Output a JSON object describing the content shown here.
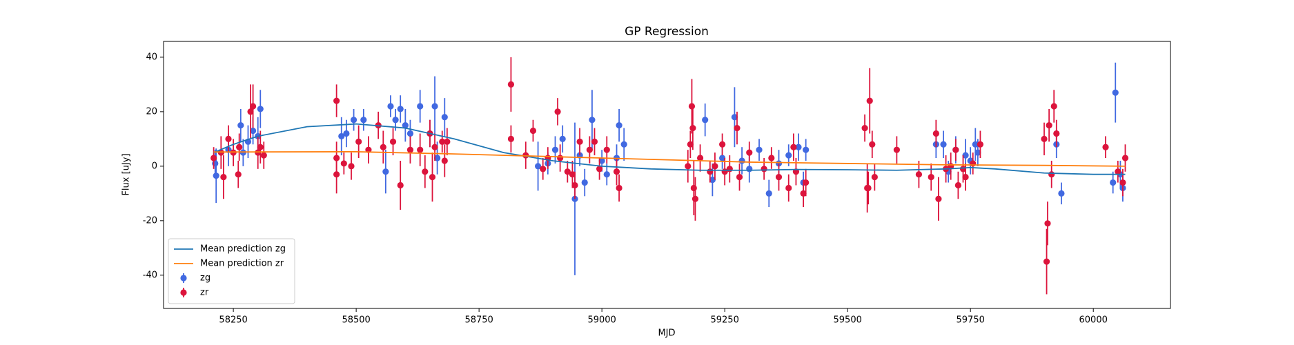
{
  "chart_data": {
    "type": "errorbar",
    "title": "GP Regression",
    "x_label": "MJD",
    "y_label": "Flux [uJy]",
    "xlim": [
      58108,
      60157
    ],
    "xticks": [
      58250,
      58500,
      58750,
      59000,
      59250,
      59500,
      59750,
      60000
    ],
    "ylim": [
      -52.2,
      45.8
    ],
    "yticks": [
      -40,
      -20,
      0,
      20,
      40
    ],
    "legend": "lower left",
    "series": [
      {
        "name": "Mean prediction zg",
        "type": "line",
        "color": "#1f77b4",
        "x": [
          58210,
          58250,
          58300,
          58400,
          58500,
          58600,
          58700,
          58800,
          58900,
          59000,
          59100,
          59200,
          59300,
          59400,
          59500,
          59600,
          59700,
          59750,
          59800,
          59900,
          60000,
          60065
        ],
        "values": [
          5,
          8,
          11,
          14.5,
          15.5,
          14,
          10,
          5,
          2,
          0,
          -1,
          -1.5,
          -1.5,
          -1.2,
          -1.3,
          -1.5,
          -1,
          -0.5,
          -1,
          -2.5,
          -3,
          -3
        ]
      },
      {
        "name": "Mean prediction zr",
        "type": "line",
        "color": "#ff7f0e",
        "x": [
          58210,
          58500,
          58700,
          58900,
          59100,
          59300,
          59500,
          59700,
          59900,
          60065
        ],
        "values": [
          5.2,
          5.3,
          4.5,
          3.5,
          2.5,
          1.5,
          1,
          0.5,
          0.3,
          0
        ]
      },
      {
        "name": "zg",
        "type": "errorbar",
        "color": "#4169e1",
        "x": [
          58213,
          58215,
          58240,
          58265,
          58270,
          58280,
          58290,
          58300,
          58305,
          58470,
          58480,
          58495,
          58515,
          58560,
          58570,
          58580,
          58590,
          58600,
          58610,
          58630,
          58650,
          58660,
          58665,
          58680,
          58870,
          58890,
          58905,
          58920,
          58945,
          58955,
          58965,
          58980,
          59000,
          59010,
          59030,
          59035,
          59045,
          59210,
          59225,
          59245,
          59270,
          59285,
          59300,
          59320,
          59340,
          59360,
          59380,
          59400,
          59410,
          59415,
          59680,
          59695,
          59705,
          59720,
          59740,
          59750,
          59760,
          59765,
          59925,
          59935,
          60040,
          60045,
          60055,
          60060
        ],
        "values": [
          1,
          -3.5,
          6,
          15,
          5,
          9,
          13,
          11,
          21,
          11,
          12,
          17,
          17,
          -2,
          22,
          17,
          21,
          15,
          12,
          22,
          12,
          22,
          3,
          18,
          0,
          1,
          6,
          10,
          -12,
          4,
          -6,
          17,
          2,
          -3,
          3,
          15,
          8,
          17,
          -5,
          3,
          18,
          2,
          -1,
          6,
          -10,
          1,
          4,
          7,
          -6,
          6,
          8,
          8,
          -2,
          6,
          4,
          2,
          8,
          5,
          8,
          -10,
          -6,
          27,
          -3,
          -8
        ],
        "errors": [
          5,
          10,
          6,
          6,
          5,
          6,
          5,
          7,
          7,
          7,
          5,
          4,
          4,
          8,
          4,
          4,
          5,
          6,
          5,
          6,
          5,
          11,
          6,
          7,
          9,
          4,
          5,
          5,
          28,
          4,
          5,
          11,
          4,
          4,
          5,
          6,
          6,
          6,
          6,
          4,
          11,
          5,
          5,
          4,
          5,
          5,
          4,
          5,
          4,
          4,
          5,
          5,
          4,
          5,
          6,
          5,
          6,
          5,
          5,
          4,
          4,
          11,
          5,
          5
        ]
      },
      {
        "name": "zr",
        "type": "errorbar",
        "color": "#dc143c",
        "x": [
          58210,
          58225,
          58230,
          58240,
          58250,
          58260,
          58262,
          58285,
          58290,
          58300,
          58305,
          58312,
          58460,
          58460,
          58460,
          58475,
          58490,
          58505,
          58525,
          58545,
          58555,
          58575,
          58590,
          58610,
          58630,
          58640,
          58650,
          58655,
          58660,
          58675,
          58680,
          58685,
          58815,
          58815,
          58845,
          58860,
          58880,
          58890,
          58910,
          58915,
          58930,
          58940,
          58945,
          58955,
          58975,
          58985,
          58995,
          59010,
          59030,
          59035,
          59175,
          59180,
          59183,
          59185,
          59187,
          59190,
          59200,
          59220,
          59230,
          59245,
          59250,
          59260,
          59275,
          59280,
          59300,
          59330,
          59345,
          59360,
          59380,
          59390,
          59395,
          59410,
          59415,
          59535,
          59540,
          59542,
          59545,
          59550,
          59555,
          59600,
          59645,
          59670,
          59680,
          59685,
          59700,
          59710,
          59720,
          59725,
          59735,
          59740,
          59755,
          59770,
          59900,
          59905,
          59907,
          59910,
          59915,
          59920,
          59925,
          60025,
          60050,
          60060,
          60065
        ],
        "values": [
          3,
          5,
          -4,
          10,
          5,
          -3,
          7,
          20,
          22,
          5,
          7,
          4,
          24,
          3,
          -3,
          1,
          0,
          9,
          6,
          15,
          7,
          9,
          -7,
          6,
          6,
          -2,
          12,
          -4,
          7,
          9,
          2,
          9,
          30,
          10,
          4,
          13,
          -1,
          3,
          20,
          3,
          -2,
          -3,
          -7,
          9,
          6,
          9,
          -1,
          6,
          -2,
          -8,
          0,
          8,
          22,
          14,
          -8,
          -12,
          3,
          -2,
          0,
          8,
          -2,
          -1,
          14,
          -4,
          5,
          -1,
          3,
          -4,
          -8,
          7,
          -2,
          -10,
          -6,
          14,
          -8,
          -8,
          24,
          8,
          -4,
          6,
          -3,
          -4,
          12,
          -12,
          -1,
          0,
          6,
          -7,
          -1,
          -4,
          1,
          8,
          10,
          -35,
          -21,
          15,
          -3,
          22,
          12,
          7,
          -2,
          -6,
          3
        ],
        "errors": [
          4,
          6,
          8,
          5,
          5,
          5,
          5,
          10,
          8,
          6,
          6,
          5,
          6,
          6,
          7,
          4,
          5,
          6,
          5,
          5,
          6,
          5,
          9,
          5,
          6,
          6,
          5,
          9,
          5,
          4,
          6,
          5,
          10,
          5,
          5,
          4,
          4,
          4,
          5,
          5,
          4,
          5,
          5,
          5,
          5,
          5,
          4,
          5,
          5,
          5,
          6,
          5,
          10,
          8,
          10,
          8,
          5,
          4,
          5,
          4,
          5,
          5,
          6,
          5,
          4,
          4,
          4,
          5,
          5,
          5,
          5,
          5,
          5,
          5,
          9,
          6,
          12,
          5,
          5,
          5,
          5,
          5,
          5,
          8,
          5,
          5,
          4,
          5,
          5,
          5,
          4,
          5,
          6,
          12,
          8,
          6,
          5,
          6,
          5,
          4,
          4,
          5,
          5
        ]
      }
    ]
  }
}
